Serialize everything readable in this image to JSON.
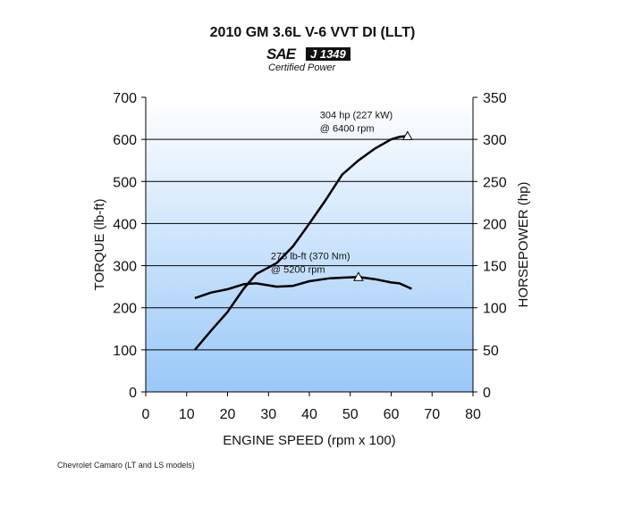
{
  "header": {
    "title": "2010 GM 3.6L V-6 VVT DI (LLT)",
    "logo_mark": "SAE",
    "logo_standard": "J 1349",
    "logo_caption": "Certified Power"
  },
  "footnote": "Chevrolet Camaro (LT and LS models)",
  "colors": {
    "plot_top": "#ffffff",
    "plot_bottom": "#99c8f8",
    "line": "#000000",
    "grid": "#000000"
  },
  "chart_data": {
    "type": "line",
    "title": "2010 GM 3.6L V-6 VVT DI (LLT)",
    "xlabel": "ENGINE SPEED (rpm x 100)",
    "ylabel": "TORQUE (lb-ft)",
    "y2label": "HORSEPOWER (hp)",
    "xlim": [
      0,
      80
    ],
    "ylim": [
      0,
      700
    ],
    "y2lim": [
      0,
      350
    ],
    "x_ticks": [
      0,
      10,
      20,
      30,
      40,
      50,
      60,
      70,
      80
    ],
    "y_ticks": [
      0,
      100,
      200,
      300,
      400,
      500,
      600,
      700
    ],
    "y2_ticks": [
      0,
      50,
      100,
      150,
      200,
      250,
      300,
      350
    ],
    "grid": "horizontal",
    "series": [
      {
        "name": "Torque",
        "axis": "left",
        "x": [
          12,
          16,
          20,
          24,
          27,
          32,
          36,
          40,
          45,
          52,
          56,
          60,
          62,
          65
        ],
        "y": [
          223,
          236,
          244,
          256,
          258,
          250,
          252,
          263,
          270,
          273,
          268,
          260,
          258,
          245
        ]
      },
      {
        "name": "Horsepower",
        "axis": "right",
        "x": [
          12,
          16,
          20,
          24,
          27,
          32,
          36,
          40,
          44,
          48,
          52,
          56,
          60,
          62,
          64
        ],
        "y": [
          50,
          73,
          95,
          123,
          140,
          153,
          173,
          200,
          228,
          258,
          275,
          289,
          300,
          303,
          304
        ]
      }
    ],
    "annotations": [
      {
        "series": "Horsepower",
        "x": 64,
        "y": 304,
        "line1": "304 hp (227 kW)",
        "line2": "@ 6400 rpm"
      },
      {
        "series": "Torque",
        "x": 52,
        "y": 273,
        "line1": "273 lb-ft (370 Nm)",
        "line2": "@ 5200 rpm"
      }
    ]
  }
}
